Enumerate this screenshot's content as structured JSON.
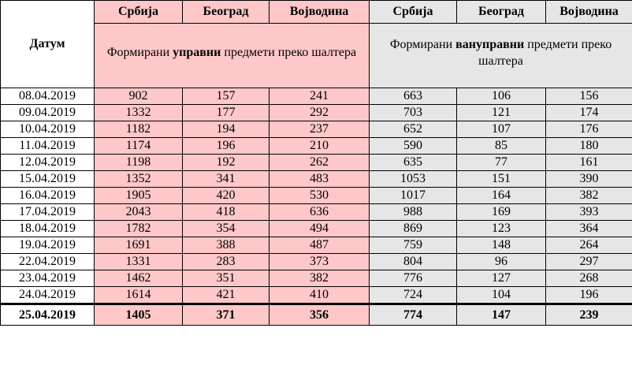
{
  "header": {
    "datum": "Датум",
    "cols": [
      "Србија",
      "Београд",
      "Војводина",
      "Србија",
      "Београд",
      "Војводина"
    ],
    "group1": {
      "pre": "Формирани ",
      "bold": "управни",
      "post": " предмети преко шалтера"
    },
    "group2": {
      "pre": "Формирани ",
      "bold": "вануправни",
      "post": " предмети преко шалтера"
    }
  },
  "rows": [
    [
      "08.04.2019",
      "902",
      "157",
      "241",
      "663",
      "106",
      "156"
    ],
    [
      "09.04.2019",
      "1332",
      "177",
      "292",
      "703",
      "121",
      "174"
    ],
    [
      "10.04.2019",
      "1182",
      "194",
      "237",
      "652",
      "107",
      "176"
    ],
    [
      "11.04.2019",
      "1174",
      "196",
      "210",
      "590",
      "85",
      "180"
    ],
    [
      "12.04.2019",
      "1198",
      "192",
      "262",
      "635",
      "77",
      "161"
    ],
    [
      "15.04.2019",
      "1352",
      "341",
      "483",
      "1053",
      "151",
      "390"
    ],
    [
      "16.04.2019",
      "1905",
      "420",
      "530",
      "1017",
      "164",
      "382"
    ],
    [
      "17.04.2019",
      "2043",
      "418",
      "636",
      "988",
      "169",
      "393"
    ],
    [
      "18.04.2019",
      "1782",
      "354",
      "494",
      "869",
      "123",
      "364"
    ],
    [
      "19.04.2019",
      "1691",
      "388",
      "487",
      "759",
      "148",
      "264"
    ],
    [
      "22.04.2019",
      "1331",
      "283",
      "373",
      "804",
      "96",
      "297"
    ],
    [
      "23.04.2019",
      "1462",
      "351",
      "382",
      "776",
      "127",
      "268"
    ],
    [
      "24.04.2019",
      "1614",
      "421",
      "410",
      "724",
      "104",
      "196"
    ]
  ],
  "last_row": [
    "25.04.2019",
    "1405",
    "371",
    "356",
    "774",
    "147",
    "239"
  ]
}
